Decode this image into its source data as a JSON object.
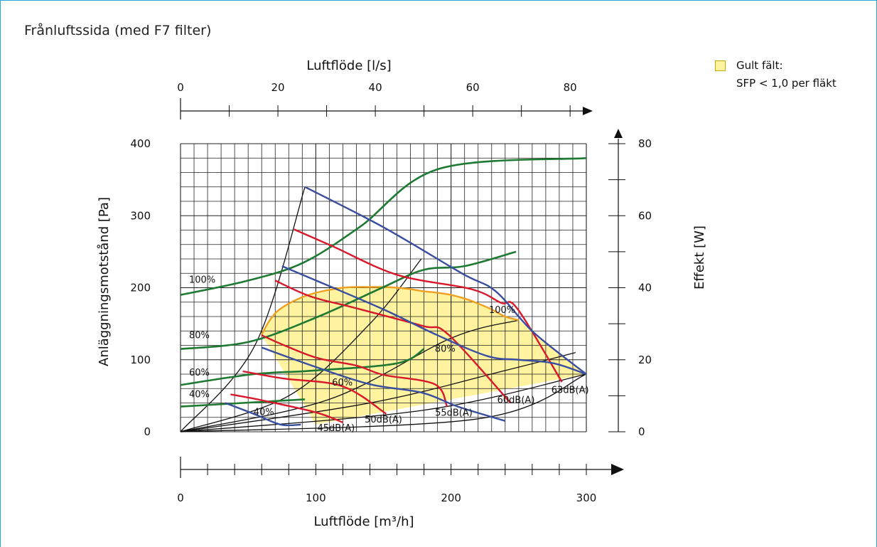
{
  "title": "Frånluftssida (med F7 filter)",
  "legend": {
    "swatch_color": "#fff3a0",
    "line1": "Gult fält:",
    "line2": "SFP < 1,0 per fläkt"
  },
  "chart_data": {
    "type": "line",
    "title": "Frånluftssida (med F7 filter)",
    "x_axis_bottom": {
      "label": "Luftflöde [m³/h]",
      "range": [
        0,
        300
      ],
      "ticks": [
        "0",
        "100",
        "200",
        "300"
      ]
    },
    "x_axis_top": {
      "label": "Luftflöde [l/s]",
      "range": [
        0,
        83.33
      ],
      "ticks": [
        "0",
        "20",
        "40",
        "60",
        "80"
      ]
    },
    "y_axis_left": {
      "label": "Anläggningsmotstånd [Pa]",
      "range": [
        0,
        400
      ],
      "ticks": [
        "0",
        "100",
        "200",
        "300",
        "400"
      ]
    },
    "y_axis_right": {
      "label": "Effekt [W]",
      "range": [
        0,
        80
      ],
      "ticks": [
        "0",
        "20",
        "40",
        "60",
        "80"
      ]
    },
    "grid": true,
    "legend_position": "top-right",
    "colors": {
      "pressure": "#3a4ea0",
      "sound": "#d9192b",
      "power": "#1e7a32",
      "system": "#111111",
      "sfp_boundary": "#f0a020",
      "sfp_fill": "#fff3a0"
    },
    "sfp_region": {
      "label": "SFP < 1,0 per fläkt",
      "x": [
        60,
        66,
        72,
        80,
        90,
        100,
        110,
        120,
        130,
        140,
        150,
        160,
        170,
        180,
        190,
        200,
        210,
        220,
        230,
        240,
        250,
        300,
        200,
        100,
        60
      ],
      "y": [
        135,
        155,
        168,
        178,
        187,
        193,
        197,
        200,
        201,
        201,
        201,
        200,
        198,
        195,
        193,
        190,
        185,
        178,
        170,
        160,
        155,
        80,
        45,
        10,
        135
      ]
    },
    "pressure_curves": [
      {
        "name": "100%",
        "label_pos": [
          228,
          165
        ],
        "x": [
          92,
          150,
          208,
          233,
          261,
          300
        ],
        "y": [
          340,
          284,
          220,
          195,
          138,
          80
        ]
      },
      {
        "name": "80%",
        "label_pos": [
          188,
          111
        ],
        "x": [
          75,
          104,
          150,
          190,
          227,
          250,
          276,
          300
        ],
        "y": [
          230,
          207,
          170,
          134,
          105,
          100,
          95,
          80
        ]
      },
      {
        "name": "60%",
        "label_pos": [
          112,
          64
        ],
        "x": [
          60,
          100,
          140,
          179,
          205,
          240
        ],
        "y": [
          117,
          90,
          66,
          54,
          35,
          15
        ]
      },
      {
        "name": "40%",
        "label_pos": [
          54,
          23
        ],
        "x": [
          33,
          54,
          74,
          89
        ],
        "y": [
          40,
          25,
          10,
          10
        ]
      }
    ],
    "sound_curves": [
      {
        "name": "63dB(A)",
        "label_pos": [
          288,
          54
        ],
        "x": [
          84,
          112,
          160,
          215,
          237,
          249,
          282
        ],
        "y": [
          281,
          258,
          218,
          198,
          179,
          171,
          69
        ]
      },
      {
        "name": "60dB(A)",
        "label_pos": [
          248,
          40
        ],
        "x": [
          70,
          96,
          129,
          179,
          198,
          244
        ],
        "y": [
          210,
          188,
          172,
          147,
          135,
          40
        ]
      },
      {
        "name": "55dB(A)",
        "label_pos": [
          202,
          22
        ],
        "x": [
          60,
          78,
          102,
          130,
          150,
          188,
          197
        ],
        "y": [
          134,
          119,
          102,
          92,
          79,
          66,
          35
        ]
      },
      {
        "name": "50dB(A)",
        "label_pos": [
          150,
          13
        ],
        "x": [
          46,
          76,
          120,
          152
        ],
        "y": [
          84,
          74,
          63,
          25
        ]
      },
      {
        "name": "45dB(A)",
        "label_pos": [
          115,
          1
        ],
        "x": [
          37,
          62,
          100,
          120
        ],
        "y": [
          52,
          43,
          27,
          13
        ]
      }
    ],
    "power_curves": [
      {
        "name": "100%",
        "label_pos": [
          7,
          207
        ],
        "x": [
          0,
          50,
          91,
          133,
          191,
          300
        ],
        "y_W": [
          38,
          42,
          47,
          57,
          73,
          76
        ]
      },
      {
        "name": "80%",
        "label_pos": [
          7,
          130
        ],
        "x": [
          0,
          51,
          102,
          149,
          180,
          210,
          248
        ],
        "y_W": [
          23,
          25,
          32,
          40,
          45,
          46,
          50
        ]
      },
      {
        "name": "60%",
        "label_pos": [
          7,
          78
        ],
        "x": [
          0,
          54,
          99,
          160,
          180
        ],
        "y_W": [
          13,
          16,
          17,
          19,
          23
        ]
      },
      {
        "name": "40%",
        "label_pos": [
          7,
          48
        ],
        "x": [
          0,
          46,
          92
        ],
        "y_W": [
          7,
          8,
          9
        ]
      }
    ],
    "system_curves": [
      {
        "x": [
          0,
          55,
          92
        ],
        "y": [
          0,
          120,
          340
        ]
      },
      {
        "x": [
          0,
          80,
          140,
          178
        ],
        "y": [
          0,
          50,
          150,
          240
        ]
      },
      {
        "x": [
          0,
          110,
          200,
          250
        ],
        "y": [
          0,
          45,
          130,
          155
        ]
      },
      {
        "x": [
          0,
          140,
          240,
          292
        ],
        "y": [
          0,
          40,
          85,
          110
        ]
      },
      {
        "x": [
          0,
          180,
          300
        ],
        "y": [
          0,
          30,
          80
        ]
      },
      {
        "x": [
          0,
          220,
          300
        ],
        "y": [
          0,
          18,
          80
        ]
      }
    ]
  }
}
